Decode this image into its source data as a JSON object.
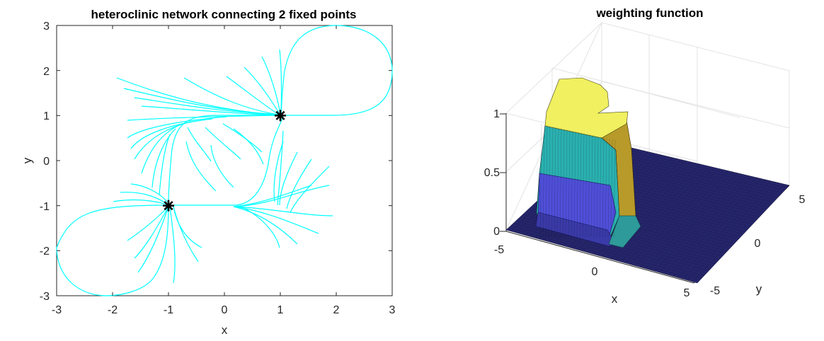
{
  "chart_data": [
    {
      "type": "line",
      "title": "heteroclinic network connecting 2 fixed points",
      "xlabel": "x",
      "ylabel": "y",
      "xlim": [
        -3,
        3
      ],
      "ylim": [
        -3,
        3
      ],
      "xticks": [
        "-3",
        "-2",
        "-1",
        "0",
        "1",
        "2",
        "3"
      ],
      "yticks": [
        "3",
        "2",
        "1",
        "0",
        "-1",
        "-2",
        "-3"
      ],
      "line_color": "#00ffff",
      "marker_color": "#000000",
      "fixed_points": [
        {
          "x": 1,
          "y": 1
        },
        {
          "x": -1,
          "y": -1
        }
      ],
      "grid": false
    },
    {
      "type": "surface",
      "title": "weighting function",
      "xlabel": "x",
      "ylabel": "y",
      "xlim": [
        -5,
        5
      ],
      "ylim": [
        -5,
        5
      ],
      "zlim": [
        0,
        1
      ],
      "xticks": [
        "-5",
        "0",
        "5"
      ],
      "yticks": [
        "-5",
        "0",
        "5"
      ],
      "zticks": [
        "0",
        "0.5",
        "1"
      ],
      "colors": [
        "#25256a",
        "#4f4fd8",
        "#2bb0b0",
        "#d8b83a",
        "#f0f060"
      ],
      "grid": true
    }
  ]
}
